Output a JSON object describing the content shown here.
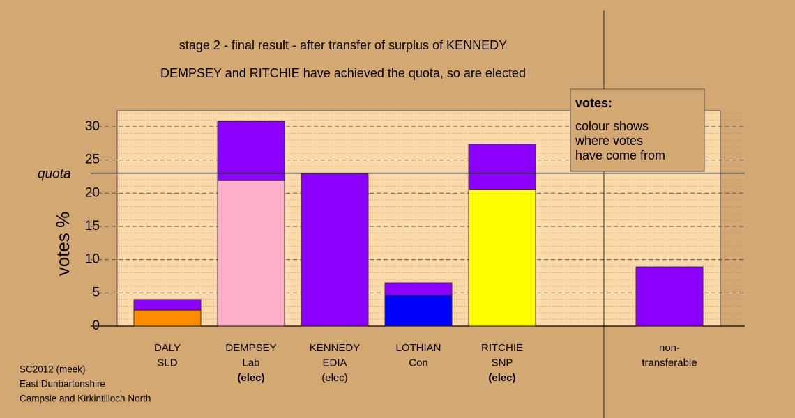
{
  "chart_data": {
    "type": "stacked-bar",
    "title": "stage 2 - final result - after transfer of surplus of KENNEDY",
    "subtitle": "DEMPSEY and RITCHIE have achieved the quota, so are elected",
    "y_label": "votes %",
    "categories": [
      [
        "DALY",
        "SLD"
      ],
      [
        "DEMPSEY",
        "Lab",
        "(elec)"
      ],
      [
        "KENNEDY",
        "EDIA",
        "(elec)"
      ],
      [
        "LOTHIAN",
        "Con"
      ],
      [
        "RITCHIE",
        "SNP",
        "(elec)"
      ],
      null,
      [
        "non-",
        "transferable"
      ]
    ],
    "newly_elected": [
      false,
      true,
      false,
      false,
      true,
      null,
      false
    ],
    "series": [
      {
        "colors": [
          "#ff8c00",
          "#ffb0c8",
          "#8b00ff",
          "#0000ff",
          "#ffff00",
          null,
          "#8b00ff"
        ],
        "values": [
          2.4,
          21.9,
          22.9,
          4.6,
          20.5,
          null,
          8.9
        ]
      },
      {
        "colors": [
          "#8b00ff",
          "#8b00ff",
          "#8b00ff",
          "#8b00ff",
          "#8b00ff",
          null,
          "#8b00ff"
        ],
        "values": [
          1.6,
          8.9,
          0,
          1.9,
          6.9,
          null,
          0
        ]
      }
    ],
    "quota": {
      "label": "quota",
      "value": 23
    },
    "ylim": [
      0,
      32.4
    ],
    "yticks": [
      0,
      5,
      10,
      15,
      20,
      25,
      30
    ],
    "minor_tick_step": 1,
    "grid": true,
    "note": {
      "title": "votes:",
      "lines": [
        "colour shows",
        "where votes",
        "have come from"
      ]
    },
    "footer": [
      "SC2012 (meek)",
      "East Dunbartonshire",
      "Campsie and Kirkintilloch North"
    ]
  }
}
